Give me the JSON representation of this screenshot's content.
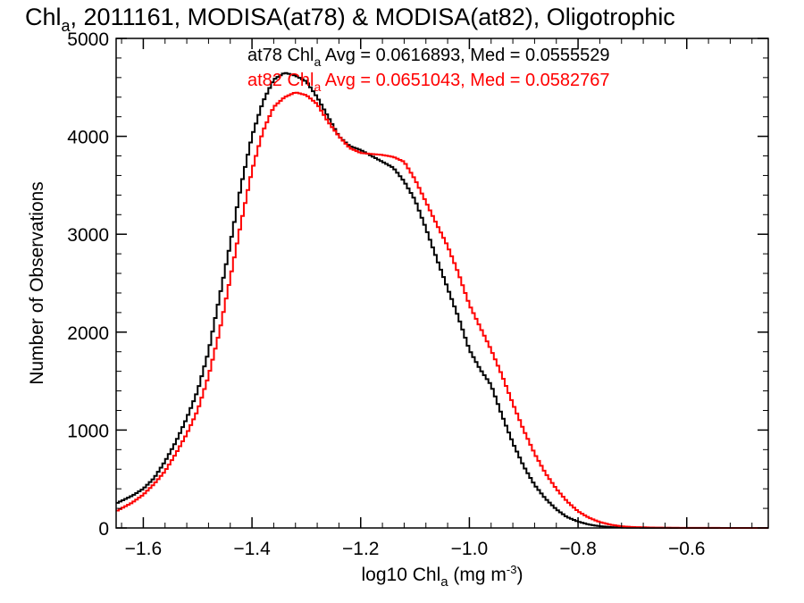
{
  "chart_data": {
    "type": "line",
    "title_parts": {
      "pre": "Chl",
      "sub": "a",
      "post": ", 2011161, MODISA(at78) & MODISA(at82), Oligotrophic"
    },
    "xlabel_parts": {
      "pre": "log10 Chl",
      "sub": "a",
      "mid": " (mg m",
      "sup": "-3",
      "post": ")"
    },
    "ylabel": "Number of Observations",
    "xlim": [
      -1.65,
      -0.45
    ],
    "ylim": [
      0,
      5000
    ],
    "x_ticks": [
      -1.6,
      -1.4,
      -1.2,
      -1.0,
      -0.8,
      -0.6
    ],
    "x_tick_labels": [
      "−1.6",
      "−1.4",
      "−1.2",
      "−1.0",
      "−0.8",
      "−0.6"
    ],
    "y_ticks": [
      0,
      1000,
      2000,
      3000,
      4000,
      5000
    ],
    "y_tick_labels": [
      "0",
      "1000",
      "2000",
      "3000",
      "4000",
      "5000"
    ],
    "legend": [
      {
        "pre": "at78 Chl",
        "sub": "a",
        "post": " Avg = 0.0616893, Med = 0.0555529",
        "color": "#000000"
      },
      {
        "pre": "at82 Chl",
        "sub": "a",
        "post": " Avg = 0.0651043, Med = 0.0582767",
        "color": "#ff0000"
      }
    ],
    "series": [
      {
        "name": "at78",
        "color": "#000000",
        "points": [
          [
            -1.65,
            250
          ],
          [
            -1.62,
            330
          ],
          [
            -1.6,
            400
          ],
          [
            -1.58,
            510
          ],
          [
            -1.56,
            680
          ],
          [
            -1.54,
            880
          ],
          [
            -1.52,
            1120
          ],
          [
            -1.5,
            1400
          ],
          [
            -1.48,
            1800
          ],
          [
            -1.46,
            2350
          ],
          [
            -1.44,
            2900
          ],
          [
            -1.42,
            3500
          ],
          [
            -1.4,
            4000
          ],
          [
            -1.38,
            4350
          ],
          [
            -1.36,
            4580
          ],
          [
            -1.34,
            4650
          ],
          [
            -1.32,
            4620
          ],
          [
            -1.3,
            4560
          ],
          [
            -1.28,
            4400
          ],
          [
            -1.26,
            4200
          ],
          [
            -1.24,
            4000
          ],
          [
            -1.22,
            3900
          ],
          [
            -1.2,
            3860
          ],
          [
            -1.18,
            3800
          ],
          [
            -1.16,
            3740
          ],
          [
            -1.14,
            3680
          ],
          [
            -1.12,
            3540
          ],
          [
            -1.1,
            3350
          ],
          [
            -1.08,
            3060
          ],
          [
            -1.06,
            2750
          ],
          [
            -1.04,
            2450
          ],
          [
            -1.02,
            2150
          ],
          [
            -1.0,
            1820
          ],
          [
            -0.98,
            1620
          ],
          [
            -0.96,
            1460
          ],
          [
            -0.94,
            1150
          ],
          [
            -0.92,
            870
          ],
          [
            -0.9,
            630
          ],
          [
            -0.88,
            440
          ],
          [
            -0.86,
            300
          ],
          [
            -0.84,
            190
          ],
          [
            -0.82,
            110
          ],
          [
            -0.8,
            65
          ],
          [
            -0.78,
            35
          ],
          [
            -0.76,
            18
          ],
          [
            -0.74,
            9
          ],
          [
            -0.72,
            4
          ],
          [
            -0.7,
            2
          ],
          [
            -0.65,
            1
          ],
          [
            -0.6,
            0
          ],
          [
            -0.45,
            0
          ]
        ]
      },
      {
        "name": "at82",
        "color": "#ff0000",
        "points": [
          [
            -1.65,
            170
          ],
          [
            -1.62,
            260
          ],
          [
            -1.6,
            340
          ],
          [
            -1.58,
            450
          ],
          [
            -1.56,
            580
          ],
          [
            -1.54,
            760
          ],
          [
            -1.52,
            960
          ],
          [
            -1.5,
            1200
          ],
          [
            -1.48,
            1550
          ],
          [
            -1.46,
            2000
          ],
          [
            -1.44,
            2550
          ],
          [
            -1.42,
            3120
          ],
          [
            -1.4,
            3650
          ],
          [
            -1.38,
            4050
          ],
          [
            -1.36,
            4300
          ],
          [
            -1.34,
            4400
          ],
          [
            -1.32,
            4450
          ],
          [
            -1.3,
            4420
          ],
          [
            -1.28,
            4330
          ],
          [
            -1.26,
            4150
          ],
          [
            -1.24,
            4000
          ],
          [
            -1.22,
            3880
          ],
          [
            -1.2,
            3830
          ],
          [
            -1.18,
            3820
          ],
          [
            -1.16,
            3810
          ],
          [
            -1.14,
            3790
          ],
          [
            -1.12,
            3740
          ],
          [
            -1.1,
            3560
          ],
          [
            -1.08,
            3330
          ],
          [
            -1.06,
            3100
          ],
          [
            -1.04,
            2880
          ],
          [
            -1.02,
            2600
          ],
          [
            -1.0,
            2280
          ],
          [
            -0.98,
            2050
          ],
          [
            -0.96,
            1820
          ],
          [
            -0.94,
            1560
          ],
          [
            -0.92,
            1270
          ],
          [
            -0.9,
            1000
          ],
          [
            -0.88,
            760
          ],
          [
            -0.86,
            560
          ],
          [
            -0.84,
            400
          ],
          [
            -0.82,
            270
          ],
          [
            -0.8,
            170
          ],
          [
            -0.78,
            105
          ],
          [
            -0.76,
            60
          ],
          [
            -0.74,
            33
          ],
          [
            -0.72,
            17
          ],
          [
            -0.7,
            9
          ],
          [
            -0.65,
            3
          ],
          [
            -0.6,
            1
          ],
          [
            -0.45,
            0
          ]
        ]
      }
    ],
    "grid": false
  }
}
